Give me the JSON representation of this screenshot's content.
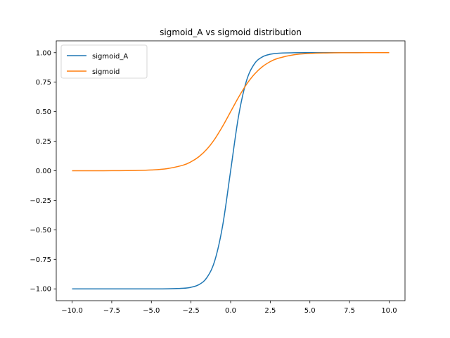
{
  "chart_data": {
    "type": "line",
    "title": "sigmoid_A vs sigmoid distribution",
    "xlabel": "",
    "ylabel": "",
    "xlim": [
      -11.0,
      11.0
    ],
    "ylim": [
      -1.1,
      1.1
    ],
    "x_ticks": [
      -10.0,
      -7.5,
      -5.0,
      -2.5,
      0.0,
      2.5,
      5.0,
      7.5,
      10.0
    ],
    "x_tick_labels": [
      "−10.0",
      "−7.5",
      "−5.0",
      "−2.5",
      "0.0",
      "2.5",
      "5.0",
      "7.5",
      "10.0"
    ],
    "y_ticks": [
      -1.0,
      -0.75,
      -0.5,
      -0.25,
      0.0,
      0.25,
      0.5,
      0.75,
      1.0
    ],
    "y_tick_labels": [
      "−1.00",
      "−0.75",
      "−0.50",
      "−0.25",
      "0.00",
      "0.25",
      "0.50",
      "0.75",
      "1.00"
    ],
    "grid": false,
    "legend_position": "top-left",
    "x": [
      -10,
      -9,
      -8,
      -7,
      -6,
      -5,
      -4,
      -3,
      -2.5,
      -2,
      -1.5,
      -1,
      -0.5,
      0,
      0.5,
      1,
      1.5,
      2,
      2.5,
      3,
      4,
      5,
      6,
      7,
      8,
      9,
      10
    ],
    "series": [
      {
        "name": "sigmoid_A",
        "color": "#1f77b4",
        "values": [
          -1.0,
          -1.0,
          -1.0,
          -1.0,
          -1.0,
          -1.0,
          -0.9993,
          -0.9951,
          -0.9866,
          -0.964,
          -0.9051,
          -0.7616,
          -0.4621,
          0.0,
          0.4621,
          0.7616,
          0.9051,
          0.964,
          0.9866,
          0.9951,
          0.9993,
          0.9999,
          1.0,
          1.0,
          1.0,
          1.0,
          1.0
        ]
      },
      {
        "name": "sigmoid",
        "color": "#ff7f0e",
        "values": [
          0.0,
          0.0001,
          0.0003,
          0.0009,
          0.0025,
          0.0067,
          0.018,
          0.0474,
          0.0759,
          0.1192,
          0.1824,
          0.2689,
          0.3775,
          0.5,
          0.6225,
          0.7311,
          0.8176,
          0.8808,
          0.9241,
          0.9526,
          0.982,
          0.9933,
          0.9975,
          0.9991,
          0.9997,
          0.9999,
          1.0
        ]
      }
    ]
  }
}
